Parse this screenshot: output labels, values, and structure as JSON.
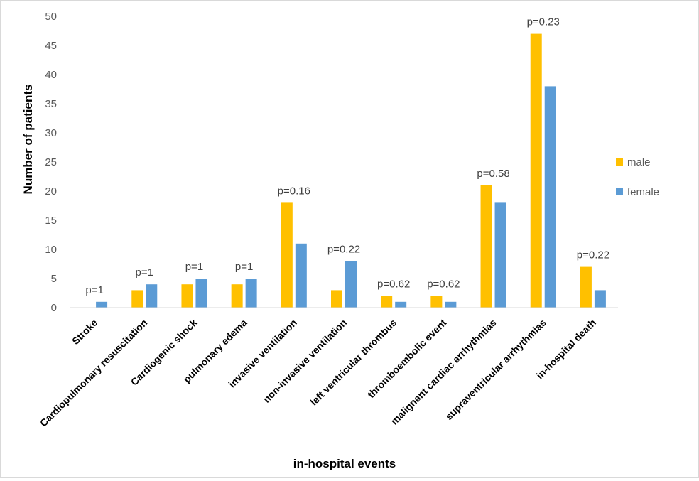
{
  "chart_data": {
    "type": "bar",
    "title": "",
    "xlabel": "in-hospital events",
    "ylabel": "Number of patients",
    "ylim": [
      0,
      50
    ],
    "yticks": [
      "0",
      "5",
      "10",
      "15",
      "20",
      "25",
      "30",
      "35",
      "40",
      "45",
      "50"
    ],
    "categories": [
      "Stroke",
      "Cardiopulmonary resuscitation",
      "Cardiogenic shock",
      "pulmonary edema",
      "invasive ventilation",
      "non-invasive ventilation",
      "left ventricular thrombus",
      "thromboembolic event",
      "malignant cardiac arrhythmias",
      "supraventricular arrhythmias",
      "in-hospital death"
    ],
    "series": [
      {
        "name": "male",
        "color": "#FFC000",
        "values": [
          0,
          3,
          4,
          4,
          18,
          3,
          2,
          2,
          21,
          47,
          7
        ]
      },
      {
        "name": "female",
        "color": "#5B9BD5",
        "values": [
          1,
          4,
          5,
          5,
          11,
          8,
          1,
          1,
          18,
          38,
          3
        ]
      }
    ],
    "annotations": [
      "p=1",
      "p=1",
      "p=1",
      "p=1",
      "p=0.16",
      "p=0.22",
      "p=0.62",
      "p=0.62",
      "p=0.58",
      "p=0.23",
      "p=0.22"
    ],
    "legend_position": "right",
    "grid": false
  }
}
